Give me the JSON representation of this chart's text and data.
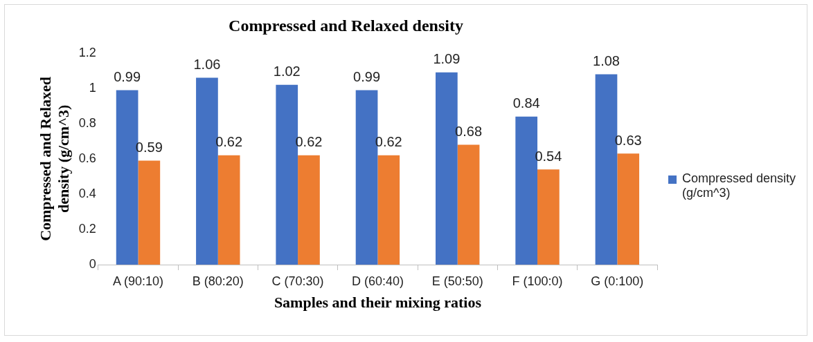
{
  "chart_data": {
    "type": "bar",
    "title": "Compressed and Relaxed density",
    "xlabel": "Samples and their mixing ratios",
    "ylabel": "Compressed and Relaxed density (g/cm^3)",
    "categories": [
      "A (90:10)",
      "B (80:20)",
      "C (70:30)",
      "D (60:40)",
      "E (50:50)",
      "F (100:0)",
      "G (0:100)"
    ],
    "series": [
      {
        "name": "Compressed density (g/cm^3)",
        "color": "#4472c4",
        "values": [
          0.99,
          1.06,
          1.02,
          0.99,
          1.09,
          0.84,
          1.08
        ]
      },
      {
        "color": "#ed7d31",
        "values": [
          0.59,
          0.62,
          0.62,
          0.62,
          0.68,
          0.54,
          0.63
        ]
      }
    ],
    "ylim": [
      0,
      1.2
    ],
    "yticks": [
      0,
      0.2,
      0.4,
      0.6,
      0.8,
      1,
      1.2
    ],
    "grid": false,
    "legend": "right",
    "data_labels": true
  }
}
